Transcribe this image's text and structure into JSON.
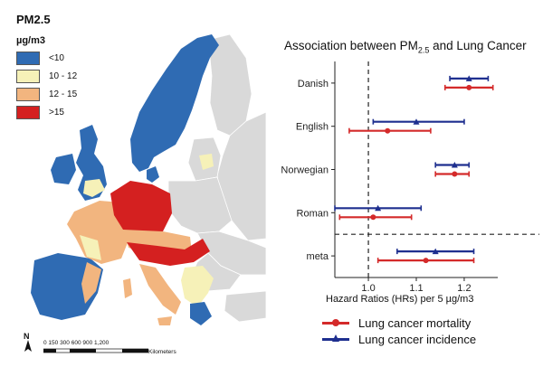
{
  "map": {
    "title": "PM2.5",
    "unit": "µg/m3",
    "legend": [
      {
        "label": "<10",
        "color": "#2f6bb3"
      },
      {
        "label": "10 - 12",
        "color": "#f6f1b8"
      },
      {
        "label": "12 - 15",
        "color": "#f2b57f"
      },
      {
        "label": ">15",
        "color": "#d42020"
      }
    ],
    "scalebar": {
      "ticks": "0  150 300      600      900     1,200",
      "unit": "Kilometers"
    },
    "north": "N",
    "colors": {
      "sea": "#ffffff",
      "non_study_land": "#d9d9d9",
      "border": "#ffffff"
    }
  },
  "chart_data": {
    "type": "forest",
    "title": "Association between PM",
    "title_sub": "2.5",
    "title_rest": " and Lung Cancer",
    "xlabel": "Hazard Ratios (HRs) per 5 µg/m3",
    "xlim": [
      0.93,
      1.27
    ],
    "xticks": [
      1.0,
      1.1,
      1.2
    ],
    "reference_line": 1.0,
    "separator_after": "Roman",
    "categories": [
      "Danish",
      "English",
      "Norwegian",
      "Roman",
      "meta"
    ],
    "series": [
      {
        "name": "Lung cancer mortality",
        "color": "#d42a2a",
        "marker": "circle",
        "points": [
          {
            "category": "Danish",
            "hr": 1.21,
            "lower": 1.16,
            "upper": 1.26
          },
          {
            "category": "English",
            "hr": 1.04,
            "lower": 0.96,
            "upper": 1.13
          },
          {
            "category": "Norwegian",
            "hr": 1.18,
            "lower": 1.14,
            "upper": 1.21
          },
          {
            "category": "Roman",
            "hr": 1.01,
            "lower": 0.94,
            "upper": 1.09
          },
          {
            "category": "meta",
            "hr": 1.12,
            "lower": 1.02,
            "upper": 1.22
          }
        ]
      },
      {
        "name": "Lung cancer incidence",
        "color": "#1e2f8f",
        "marker": "triangle",
        "points": [
          {
            "category": "Danish",
            "hr": 1.21,
            "lower": 1.17,
            "upper": 1.25
          },
          {
            "category": "English",
            "hr": 1.1,
            "lower": 1.01,
            "upper": 1.2
          },
          {
            "category": "Norwegian",
            "hr": 1.18,
            "lower": 1.14,
            "upper": 1.21
          },
          {
            "category": "Roman",
            "hr": 1.02,
            "lower": 0.93,
            "upper": 1.11
          },
          {
            "category": "meta",
            "hr": 1.14,
            "lower": 1.06,
            "upper": 1.22
          }
        ]
      }
    ]
  }
}
